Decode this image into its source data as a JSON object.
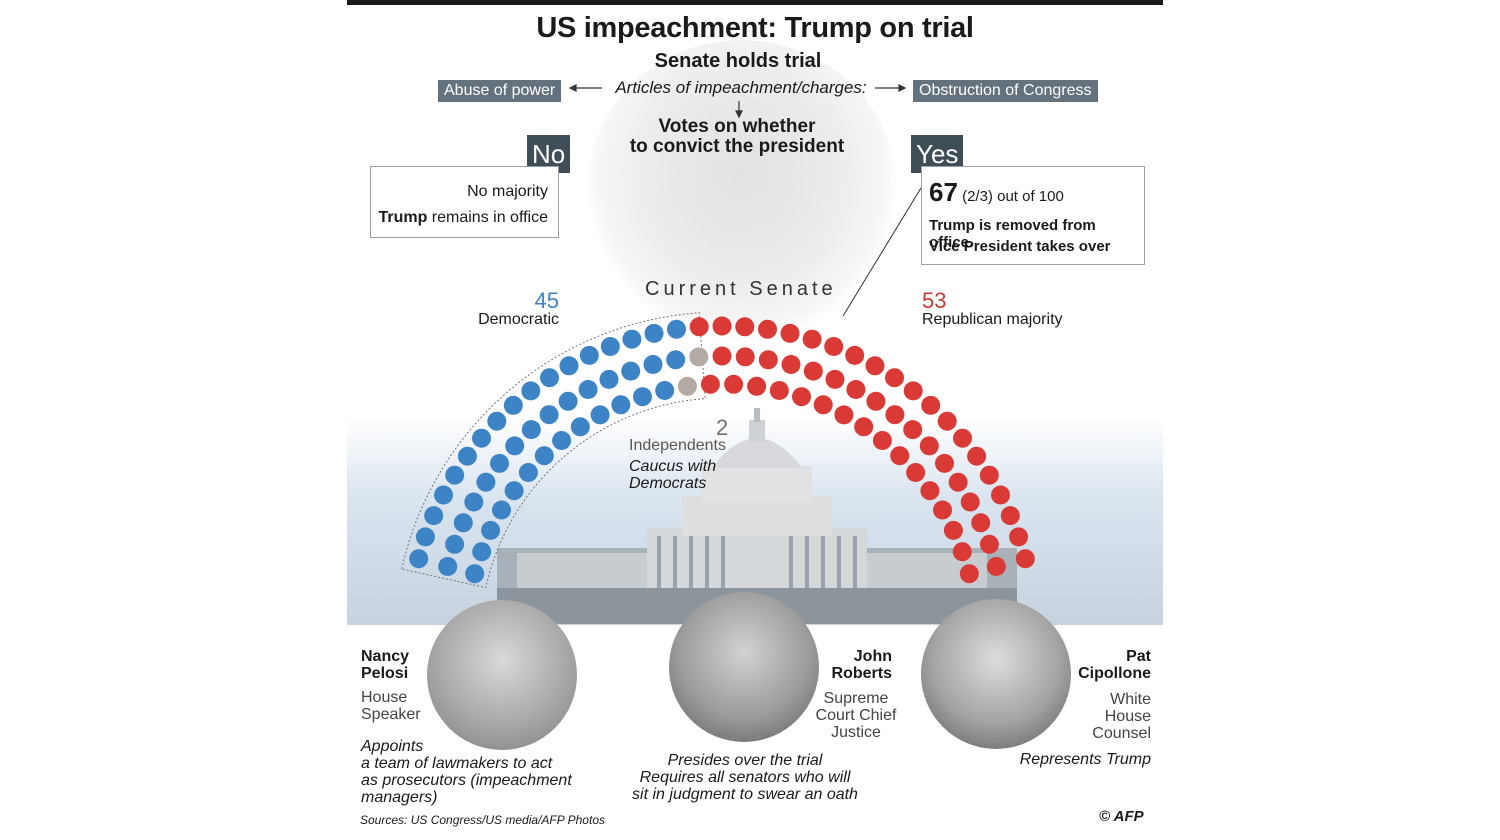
{
  "title": "US impeachment: Trump on trial",
  "subtitle": "Senate holds trial",
  "charges": {
    "left": "Abuse of power",
    "center": "Articles of impeachment/charges:",
    "right": "Obstruction of Congress"
  },
  "votes_line1": "Votes on whether",
  "votes_line2": "to convict the president",
  "no": {
    "tag": "No",
    "line1": "No majority",
    "line2_bold": "Trump",
    "line2_rest": " remains in office"
  },
  "yes": {
    "tag": "Yes",
    "number": "67",
    "rest": " (2/3) out of 100",
    "line2": "Trump is removed from office.",
    "line3": "Vice President takes over"
  },
  "senate": {
    "label": "Current Senate",
    "dem_count": "45",
    "dem_label": "Democratic",
    "rep_count": "53",
    "rep_label": "Republican majority",
    "ind_count": "2",
    "ind_label": "Independents",
    "ind_note1": "Caucus with",
    "ind_note2": "Democrats"
  },
  "colors": {
    "democratic": "#3d84c6",
    "republican": "#d93a36",
    "independent": "#b3aaa3",
    "tag": "#3f4d56"
  },
  "people": [
    {
      "first": "Nancy",
      "last": "Pelosi",
      "role1": "House",
      "role2": "Speaker",
      "role3": "",
      "desc": [
        "Appoints",
        "a team of lawmakers to act",
        "as prosecutors (impeachment",
        "managers)"
      ]
    },
    {
      "first": "John",
      "last": "Roberts",
      "role1": "Supreme",
      "role2": "Court Chief",
      "role3": "Justice",
      "desc": [
        "Presides over the trial",
        "Requires all senators who will",
        "sit in judgment to swear an oath"
      ]
    },
    {
      "first": "Pat",
      "last": "Cipollone",
      "role1": "White",
      "role2": "House",
      "role3": "Counsel",
      "desc": [
        "Represents Trump"
      ]
    }
  ],
  "source": "Sources: US Congress/US media/AFP Photos",
  "credit": "© AFP"
}
